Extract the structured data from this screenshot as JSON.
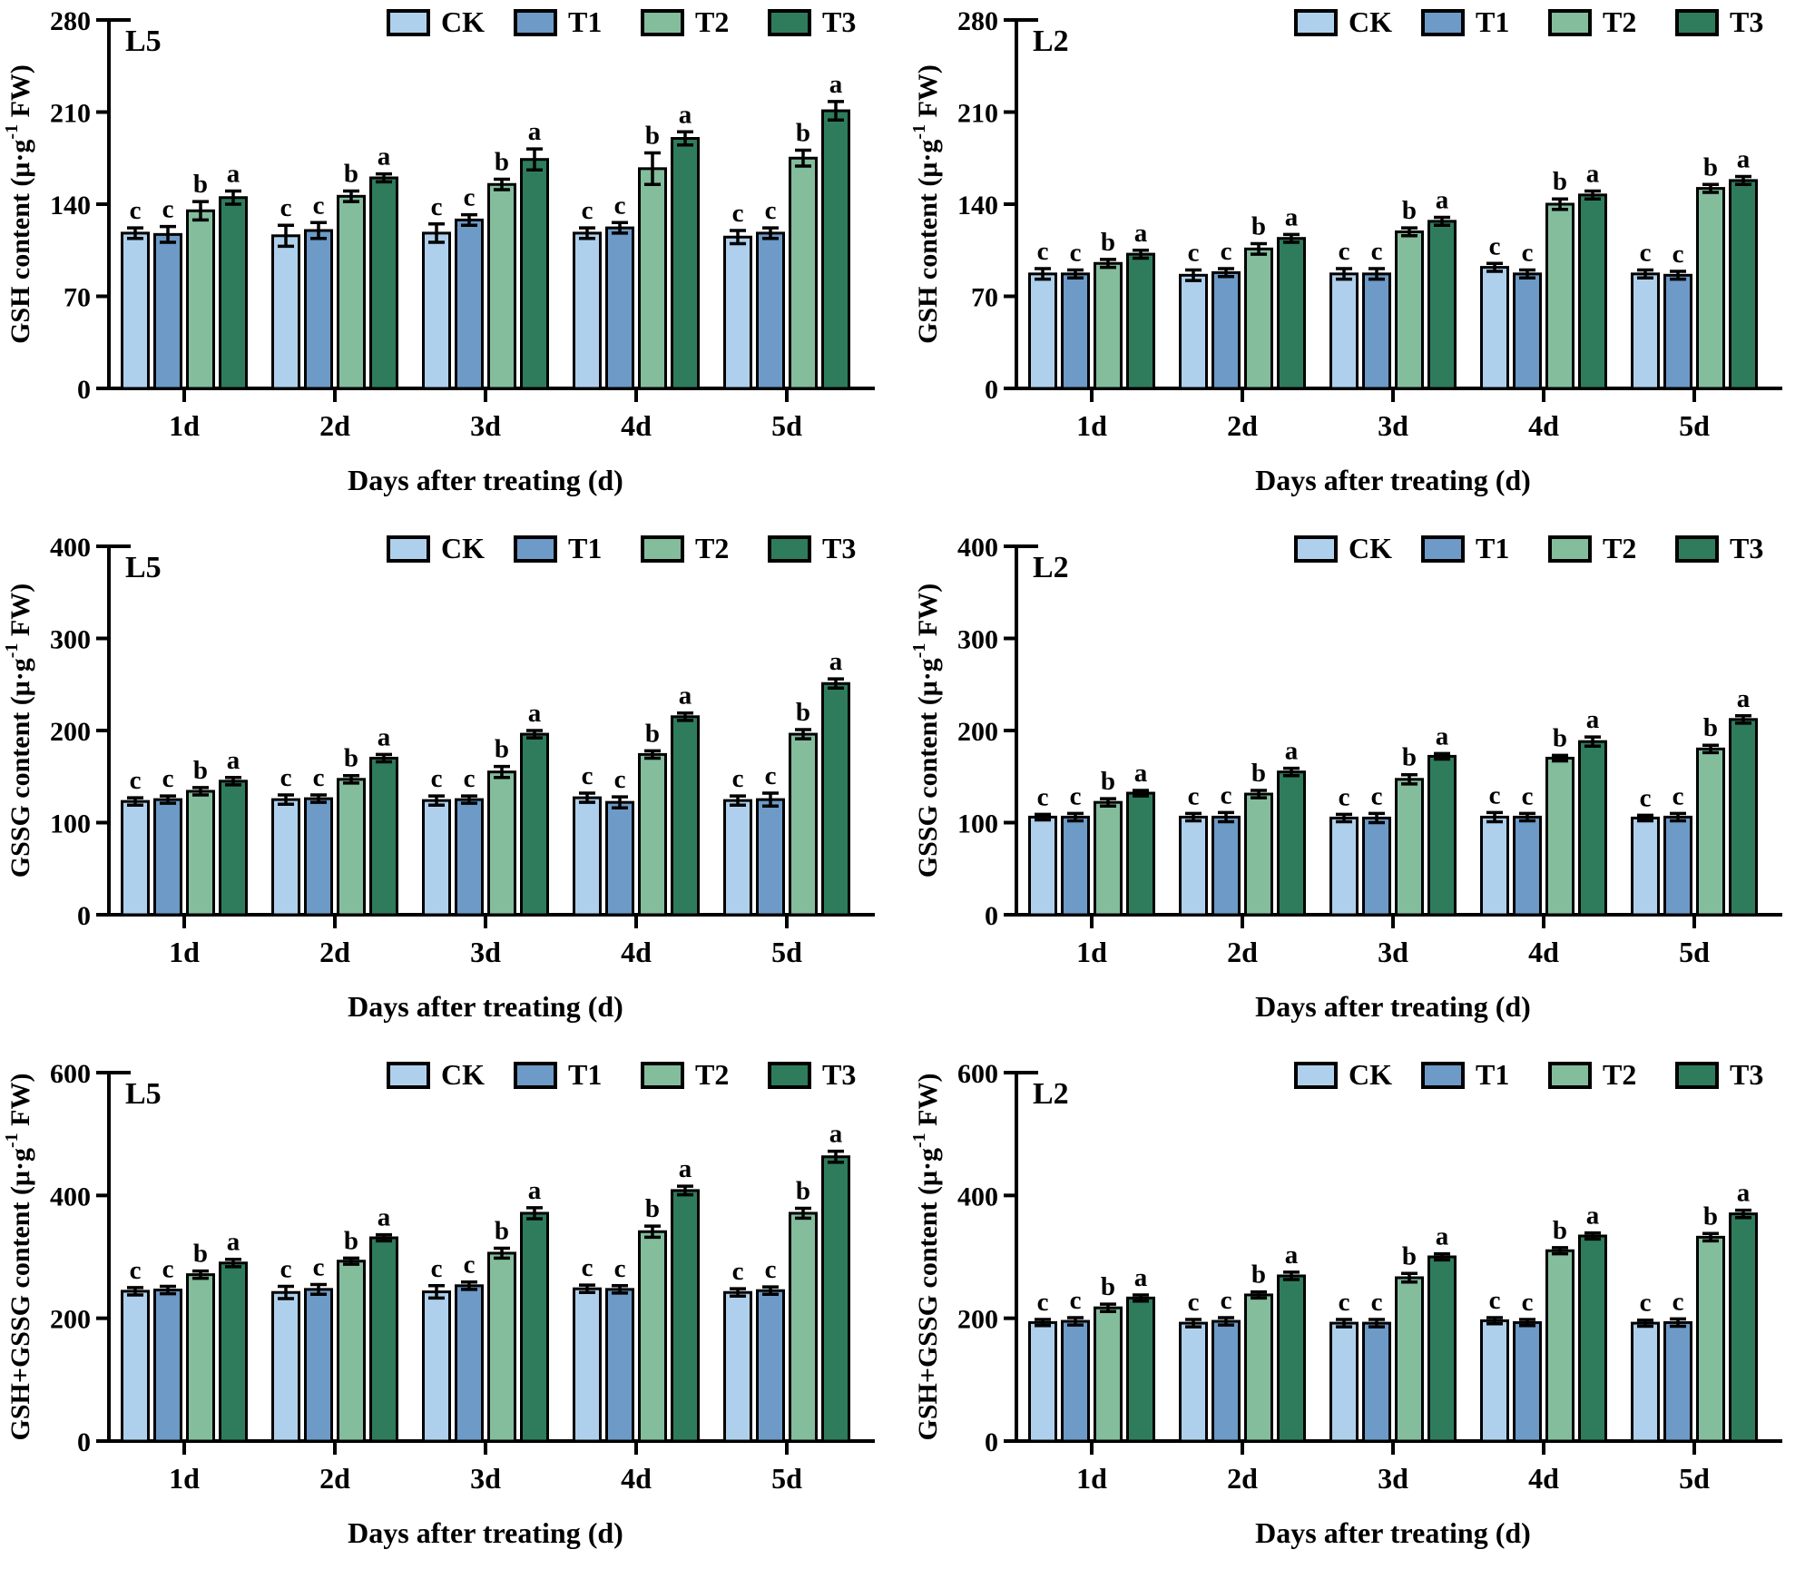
{
  "figure": {
    "background": "#ffffff",
    "text_color": "#000000",
    "axis_color": "#000000",
    "x_axis_title": "Days after treating (d)",
    "categories": [
      "1d",
      "2d",
      "3d",
      "4d",
      "5d"
    ],
    "legend": {
      "position": "top-right-inside",
      "items": [
        {
          "label": "CK",
          "color": "#aed0ec"
        },
        {
          "label": "T1",
          "color": "#6d9ac7"
        },
        {
          "label": "T2",
          "color": "#83bd9c"
        },
        {
          "label": "T3",
          "color": "#2f7c5d"
        }
      ]
    }
  },
  "chart_data": [
    {
      "type": "bar",
      "panel_label": "L5",
      "ylabel": "GSH content (μ·g⁻¹ FW)",
      "xlabel": "Days after treating (d)",
      "ylim": [
        0,
        280
      ],
      "yticks": [
        0,
        70,
        140,
        210,
        280
      ],
      "grid": false,
      "categories": [
        "1d",
        "2d",
        "3d",
        "4d",
        "5d"
      ],
      "series": [
        {
          "name": "CK",
          "values": [
            118,
            116,
            118,
            118,
            115
          ],
          "errors": [
            4,
            8,
            7,
            4,
            5
          ],
          "letters": [
            "c",
            "c",
            "c",
            "c",
            "c"
          ]
        },
        {
          "name": "T1",
          "values": [
            117,
            120,
            128,
            122,
            118
          ],
          "errors": [
            6,
            6,
            4,
            4,
            4
          ],
          "letters": [
            "c",
            "c",
            "c",
            "c",
            "c"
          ]
        },
        {
          "name": "T2",
          "values": [
            135,
            146,
            155,
            167,
            175
          ],
          "errors": [
            7,
            4,
            4,
            12,
            6
          ],
          "letters": [
            "b",
            "b",
            "b",
            "b",
            "b"
          ]
        },
        {
          "name": "T3",
          "values": [
            145,
            160,
            174,
            190,
            211
          ],
          "errors": [
            5,
            3,
            8,
            5,
            7
          ],
          "letters": [
            "a",
            "a",
            "a",
            "a",
            "a"
          ]
        }
      ]
    },
    {
      "type": "bar",
      "panel_label": "L2",
      "ylabel": "GSH content (μ·g⁻¹ FW)",
      "xlabel": "Days after treating (d)",
      "ylim": [
        0,
        280
      ],
      "yticks": [
        0,
        70,
        140,
        210,
        280
      ],
      "grid": false,
      "categories": [
        "1d",
        "2d",
        "3d",
        "4d",
        "5d"
      ],
      "series": [
        {
          "name": "CK",
          "values": [
            87,
            86,
            87,
            92,
            87
          ],
          "errors": [
            4,
            4,
            4,
            3,
            3
          ],
          "letters": [
            "c",
            "c",
            "c",
            "c",
            "c"
          ]
        },
        {
          "name": "T1",
          "values": [
            87,
            88,
            87,
            87,
            86
          ],
          "errors": [
            3,
            3,
            4,
            3,
            3
          ],
          "letters": [
            "c",
            "c",
            "c",
            "c",
            "c"
          ]
        },
        {
          "name": "T2",
          "values": [
            95,
            106,
            119,
            140,
            152
          ],
          "errors": [
            3,
            4,
            3,
            4,
            3
          ],
          "letters": [
            "b",
            "b",
            "b",
            "b",
            "b"
          ]
        },
        {
          "name": "T3",
          "values": [
            102,
            114,
            127,
            147,
            158
          ],
          "errors": [
            3,
            3,
            3,
            3,
            3
          ],
          "letters": [
            "a",
            "a",
            "a",
            "a",
            "a"
          ]
        }
      ]
    },
    {
      "type": "bar",
      "panel_label": "L5",
      "ylabel": "GSSG content (μ·g⁻¹ FW)",
      "xlabel": "Days after treating (d)",
      "ylim": [
        0,
        400
      ],
      "yticks": [
        0,
        100,
        200,
        300,
        400
      ],
      "grid": false,
      "categories": [
        "1d",
        "2d",
        "3d",
        "4d",
        "5d"
      ],
      "series": [
        {
          "name": "CK",
          "values": [
            123,
            125,
            124,
            127,
            124
          ],
          "errors": [
            4,
            5,
            5,
            5,
            5
          ],
          "letters": [
            "c",
            "c",
            "c",
            "c",
            "c"
          ]
        },
        {
          "name": "T1",
          "values": [
            125,
            126,
            125,
            122,
            125
          ],
          "errors": [
            4,
            4,
            4,
            6,
            7
          ],
          "letters": [
            "c",
            "c",
            "c",
            "c",
            "c"
          ]
        },
        {
          "name": "T2",
          "values": [
            134,
            147,
            155,
            174,
            196
          ],
          "errors": [
            4,
            4,
            6,
            4,
            5
          ],
          "letters": [
            "b",
            "b",
            "b",
            "b",
            "b"
          ]
        },
        {
          "name": "T3",
          "values": [
            145,
            170,
            196,
            215,
            251
          ],
          "errors": [
            4,
            4,
            4,
            4,
            5
          ],
          "letters": [
            "a",
            "a",
            "a",
            "a",
            "a"
          ]
        }
      ]
    },
    {
      "type": "bar",
      "panel_label": "L2",
      "ylabel": "GSSG content (μ·g⁻¹ FW)",
      "xlabel": "Days after treating (d)",
      "ylim": [
        0,
        400
      ],
      "yticks": [
        0,
        100,
        200,
        300,
        400
      ],
      "grid": false,
      "categories": [
        "1d",
        "2d",
        "3d",
        "4d",
        "5d"
      ],
      "series": [
        {
          "name": "CK",
          "values": [
            106,
            106,
            105,
            106,
            105
          ],
          "errors": [
            3,
            4,
            4,
            5,
            3
          ],
          "letters": [
            "c",
            "c",
            "c",
            "c",
            "c"
          ]
        },
        {
          "name": "T1",
          "values": [
            106,
            106,
            105,
            106,
            106
          ],
          "errors": [
            4,
            5,
            5,
            4,
            4
          ],
          "letters": [
            "c",
            "c",
            "c",
            "c",
            "c"
          ]
        },
        {
          "name": "T2",
          "values": [
            122,
            131,
            147,
            170,
            180
          ],
          "errors": [
            4,
            4,
            5,
            3,
            4
          ],
          "letters": [
            "b",
            "b",
            "b",
            "b",
            "b"
          ]
        },
        {
          "name": "T3",
          "values": [
            132,
            155,
            172,
            188,
            212
          ],
          "errors": [
            3,
            4,
            3,
            5,
            4
          ],
          "letters": [
            "a",
            "a",
            "a",
            "a",
            "a"
          ]
        }
      ]
    },
    {
      "type": "bar",
      "panel_label": "L5",
      "ylabel": "GSH+GSSG content (μ·g⁻¹ FW)",
      "xlabel": "Days after treating (d)",
      "ylim": [
        0,
        600
      ],
      "yticks": [
        0,
        200,
        400,
        600
      ],
      "grid": false,
      "categories": [
        "1d",
        "2d",
        "3d",
        "4d",
        "5d"
      ],
      "series": [
        {
          "name": "CK",
          "values": [
            244,
            242,
            243,
            248,
            242
          ],
          "errors": [
            6,
            10,
            10,
            6,
            6
          ],
          "letters": [
            "c",
            "c",
            "c",
            "c",
            "c"
          ]
        },
        {
          "name": "T1",
          "values": [
            246,
            247,
            253,
            247,
            245
          ],
          "errors": [
            6,
            8,
            6,
            6,
            6
          ],
          "letters": [
            "c",
            "c",
            "c",
            "c",
            "c"
          ]
        },
        {
          "name": "T2",
          "values": [
            271,
            293,
            306,
            341,
            371
          ],
          "errors": [
            6,
            5,
            8,
            9,
            8
          ],
          "letters": [
            "b",
            "b",
            "b",
            "b",
            "b"
          ]
        },
        {
          "name": "T3",
          "values": [
            290,
            331,
            371,
            408,
            463
          ],
          "errors": [
            6,
            5,
            9,
            7,
            9
          ],
          "letters": [
            "a",
            "a",
            "a",
            "a",
            "a"
          ]
        }
      ]
    },
    {
      "type": "bar",
      "panel_label": "L2",
      "ylabel": "GSH+GSSG content (μ·g⁻¹ FW)",
      "xlabel": "Days after treating (d)",
      "ylim": [
        0,
        600
      ],
      "yticks": [
        0,
        200,
        400,
        600
      ],
      "grid": false,
      "categories": [
        "1d",
        "2d",
        "3d",
        "4d",
        "5d"
      ],
      "series": [
        {
          "name": "CK",
          "values": [
            193,
            192,
            192,
            196,
            192
          ],
          "errors": [
            5,
            6,
            6,
            5,
            5
          ],
          "letters": [
            "c",
            "c",
            "c",
            "c",
            "c"
          ]
        },
        {
          "name": "T1",
          "values": [
            195,
            195,
            192,
            193,
            193
          ],
          "errors": [
            6,
            6,
            6,
            5,
            6
          ],
          "letters": [
            "c",
            "c",
            "c",
            "c",
            "c"
          ]
        },
        {
          "name": "T2",
          "values": [
            217,
            238,
            266,
            310,
            332
          ],
          "errors": [
            6,
            5,
            7,
            5,
            6
          ],
          "letters": [
            "b",
            "b",
            "b",
            "b",
            "b"
          ]
        },
        {
          "name": "T3",
          "values": [
            233,
            269,
            300,
            334,
            370
          ],
          "errors": [
            5,
            6,
            5,
            5,
            6
          ],
          "letters": [
            "a",
            "a",
            "a",
            "a",
            "a"
          ]
        }
      ]
    }
  ]
}
